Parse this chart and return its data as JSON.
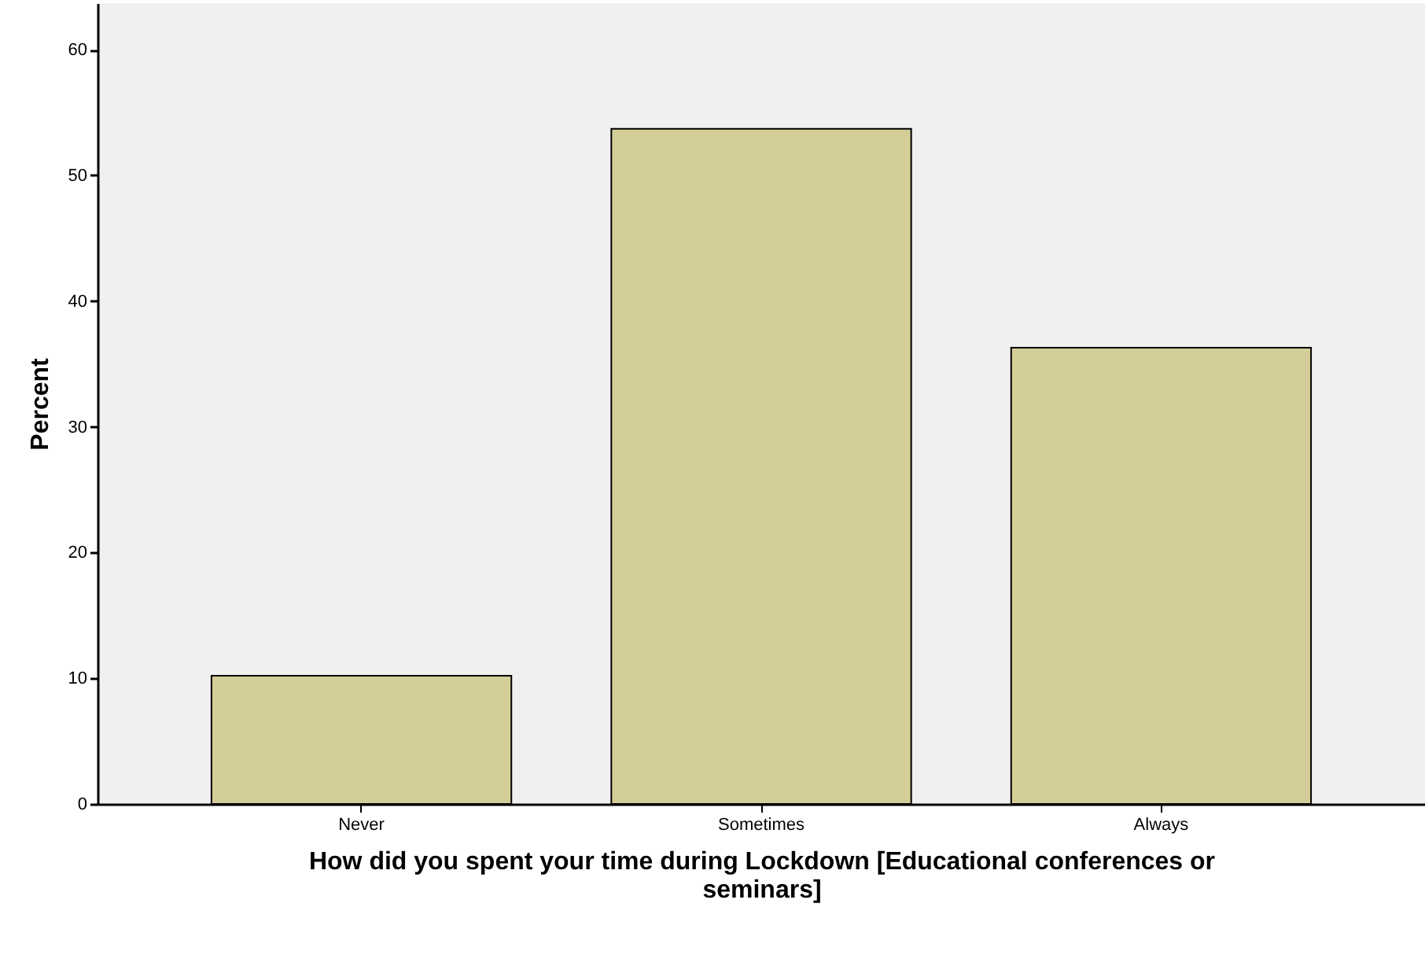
{
  "chart_data": {
    "type": "bar",
    "xlabel": "How did you spent your time during Lockdown [Educational conferences or seminars]",
    "ylabel": "Percent",
    "categories": [
      "Never",
      "Sometimes",
      "Always"
    ],
    "values": [
      10.2,
      53.7,
      36.3
    ],
    "color": "#d3ce98",
    "ylim": [
      0,
      63.7
    ],
    "yticks": [
      0,
      10,
      20,
      30,
      40,
      50,
      60
    ],
    "grid": false
  }
}
